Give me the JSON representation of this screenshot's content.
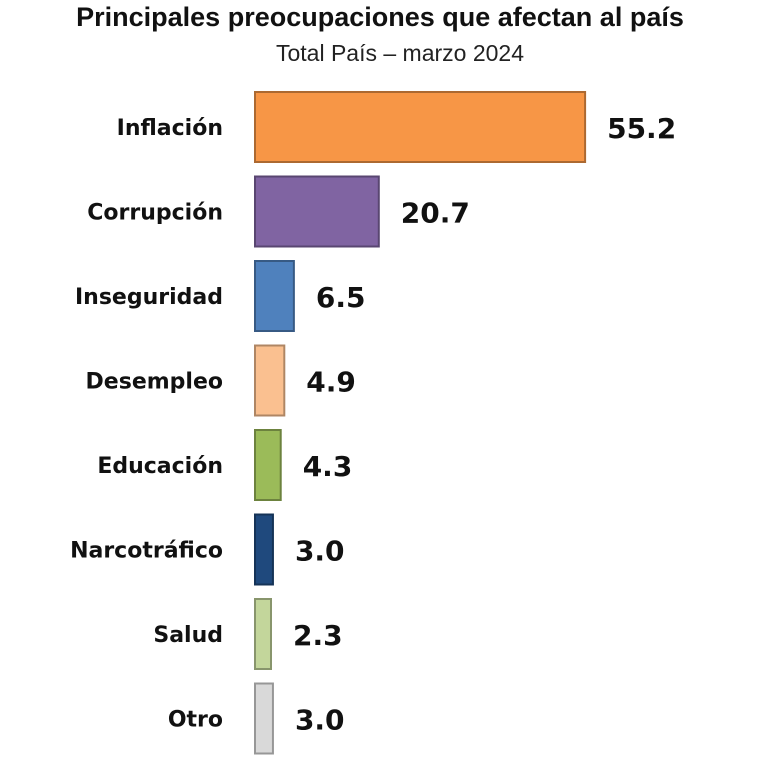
{
  "chart_data": {
    "type": "bar",
    "orientation": "horizontal",
    "title": "Principales preocupaciones que afectan al país",
    "subtitle": "Total País – marzo 2024",
    "categories": [
      "Inflación",
      "Corrupción",
      "Inseguridad",
      "Desempleo",
      "Educación",
      "Narcotráfico",
      "Salud",
      "Otro"
    ],
    "values": [
      55.2,
      20.7,
      6.5,
      4.9,
      4.3,
      3.0,
      2.3,
      3.0
    ],
    "value_labels": [
      "55.2",
      "20.7",
      "6.5",
      "4.9",
      "4.3",
      "3.0",
      "2.3",
      "3.0"
    ],
    "colors": [
      "#F79646",
      "#8064A2",
      "#4F81BD",
      "#FAC090",
      "#9BBB59",
      "#1F497D",
      "#C3D69B",
      "#D9D9D9"
    ],
    "xlabel": "",
    "ylabel": "",
    "xlim": [
      0,
      60
    ],
    "grid": false,
    "legend": "none"
  }
}
